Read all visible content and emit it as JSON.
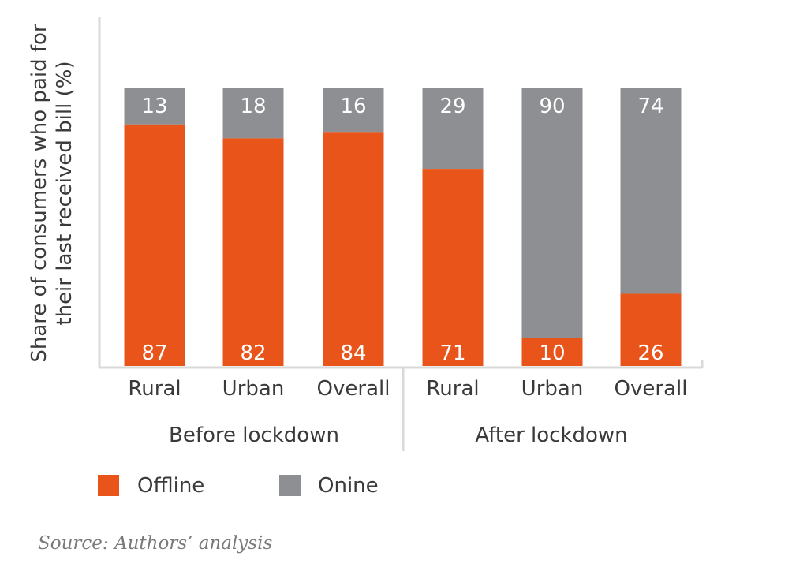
{
  "chart_data": {
    "type": "bar",
    "stacked": true,
    "ylabel": "Share of consumers who paid for their last received bill (%)",
    "ylabel_lines": [
      "Share of consumers who paid for",
      "their last received bill (%)"
    ],
    "ylim": [
      0,
      100
    ],
    "grid": false,
    "groups": [
      {
        "label": "Before lockdown",
        "categories": [
          "Rural",
          "Urban",
          "Overall"
        ]
      },
      {
        "label": "After lockdown",
        "categories": [
          "Rural",
          "Urban",
          "Overall"
        ]
      }
    ],
    "series": [
      {
        "name": "Offline",
        "color": "#e8541a",
        "values": [
          87,
          82,
          84,
          71,
          10,
          26
        ]
      },
      {
        "name": "Onine",
        "color": "#8d8f92",
        "values": [
          13,
          18,
          16,
          29,
          90,
          74
        ]
      }
    ],
    "legend": "bottom-left"
  },
  "source": "Source: Authors’ analysis"
}
